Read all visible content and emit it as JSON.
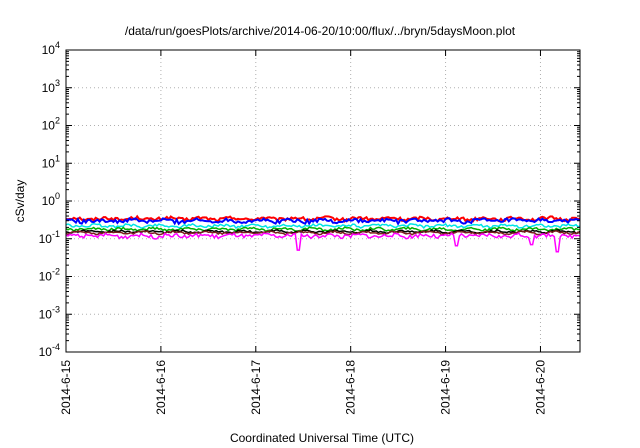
{
  "chart_data": {
    "type": "line",
    "title": "/data/run/goesPlots/archive/2014-06-20/10:00/flux/../bryn/5daysMoon.plot",
    "xlabel": "Coordinated Universal Time (UTC)",
    "ylabel": "cSv/day",
    "yscale": "log",
    "ylim": [
      0.0001,
      10000
    ],
    "xlim": [
      "2014-06-15",
      "2014-06-20 10:00"
    ],
    "grid": true,
    "legend": "none",
    "x_ticks": [
      "2014-6-15",
      "2014-6-16",
      "2014-6-17",
      "2014-6-18",
      "2014-6-19",
      "2014-6-20"
    ],
    "y_ticks": [
      {
        "base": "10",
        "exp": "-4"
      },
      {
        "base": "10",
        "exp": "-3"
      },
      {
        "base": "10",
        "exp": "-2"
      },
      {
        "base": "10",
        "exp": "-1"
      },
      {
        "base": "10",
        "exp": "0"
      },
      {
        "base": "10",
        "exp": "1"
      },
      {
        "base": "10",
        "exp": "2"
      },
      {
        "base": "10",
        "exp": "3"
      },
      {
        "base": "10",
        "exp": "4"
      }
    ],
    "series": [
      {
        "color": "#ff0000",
        "level": 0.34,
        "noise": 0.1,
        "dips": []
      },
      {
        "color": "#0000ff",
        "level": 0.3,
        "noise": 0.12,
        "dips": []
      },
      {
        "color": "#00e5e5",
        "level": 0.22,
        "noise": 0.08,
        "dips": []
      },
      {
        "color": "#00b000",
        "level": 0.18,
        "noise": 0.07,
        "dips": []
      },
      {
        "color": "#000000",
        "level": 0.155,
        "noise": 0.06,
        "dips": []
      },
      {
        "color": "#7a1f1f",
        "level": 0.145,
        "noise": 0.06,
        "dips": []
      },
      {
        "color": "#ff00ff",
        "level": 0.12,
        "noise": 0.12,
        "dips": [
          [
            2.45,
            0.05
          ],
          [
            4.12,
            0.065
          ],
          [
            4.9,
            0.07
          ],
          [
            5.17,
            0.045
          ]
        ]
      }
    ]
  }
}
